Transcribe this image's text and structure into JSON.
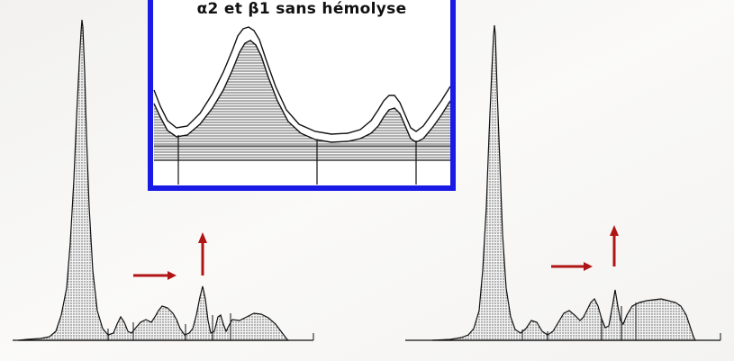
{
  "inset": {
    "caption": "α2 et β1 sans hémolyse",
    "frame_color": "#1a1ae6"
  },
  "colors": {
    "background": "#ffffff",
    "curve": "#111111",
    "arrow": "#b01515",
    "fill": "#cfcfcf"
  }
}
